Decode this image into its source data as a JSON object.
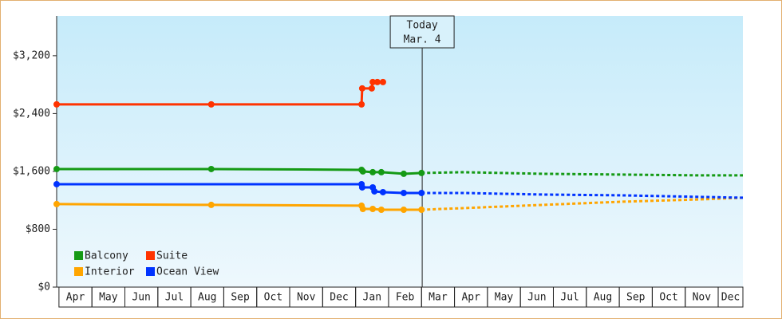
{
  "chart_data": {
    "type": "line",
    "today": {
      "x": 11.02,
      "label": "Today",
      "date": "Mar. 4"
    },
    "categories": [
      "Apr",
      "May",
      "Jun",
      "Jul",
      "Aug",
      "Sep",
      "Oct",
      "Nov",
      "Dec",
      "Jan",
      "Feb",
      "Mar",
      "Apr",
      "May",
      "Jun",
      "Jul",
      "Aug",
      "Sep",
      "Oct",
      "Nov",
      "Dec"
    ],
    "xlim": [
      -0.07,
      20.75
    ],
    "ylim": [
      0,
      3750
    ],
    "yticks": [
      {
        "value": 0,
        "label": "$0"
      },
      {
        "value": 800,
        "label": "$800"
      },
      {
        "value": 1600,
        "label": "$1,600"
      },
      {
        "value": 2400,
        "label": "$2,400"
      },
      {
        "value": 3200,
        "label": "$3,200"
      }
    ],
    "legend": "bottom-left",
    "series": [
      {
        "name": "Balcony",
        "color": "#159a15",
        "x": [
          -0.07,
          4.62,
          9.18,
          9.22,
          9.52,
          9.78,
          10.46,
          11.0,
          12.25,
          14.67,
          17.09,
          19.52,
          20.75
        ],
        "values": [
          1633,
          1633,
          1622,
          1600,
          1589,
          1589,
          1567,
          1578,
          1589,
          1567,
          1556,
          1545,
          1545
        ]
      },
      {
        "name": "Suite",
        "color": "#ff3300",
        "x": [
          -0.07,
          4.62,
          9.18,
          9.2,
          9.49,
          9.52,
          9.66,
          9.83
        ],
        "values": [
          2527,
          2527,
          2527,
          2748,
          2748,
          2836,
          2836,
          2836
        ]
      },
      {
        "name": "Interior",
        "color": "#ffa500",
        "x": [
          -0.07,
          4.62,
          9.18,
          9.22,
          9.52,
          9.78,
          10.46,
          11.0,
          12.25,
          14.67,
          17.09,
          19.52,
          20.75
        ],
        "values": [
          1148,
          1137,
          1126,
          1081,
          1081,
          1070,
          1070,
          1070,
          1092,
          1137,
          1181,
          1214,
          1236
        ]
      },
      {
        "name": "Ocean View",
        "color": "#0033ff",
        "x": [
          -0.07,
          9.18,
          9.2,
          9.52,
          9.57,
          9.83,
          10.46,
          11.0,
          12.25,
          14.67,
          17.09,
          19.52,
          20.75
        ],
        "values": [
          1423,
          1423,
          1379,
          1379,
          1324,
          1313,
          1302,
          1302,
          1302,
          1280,
          1269,
          1247,
          1236
        ]
      }
    ]
  }
}
